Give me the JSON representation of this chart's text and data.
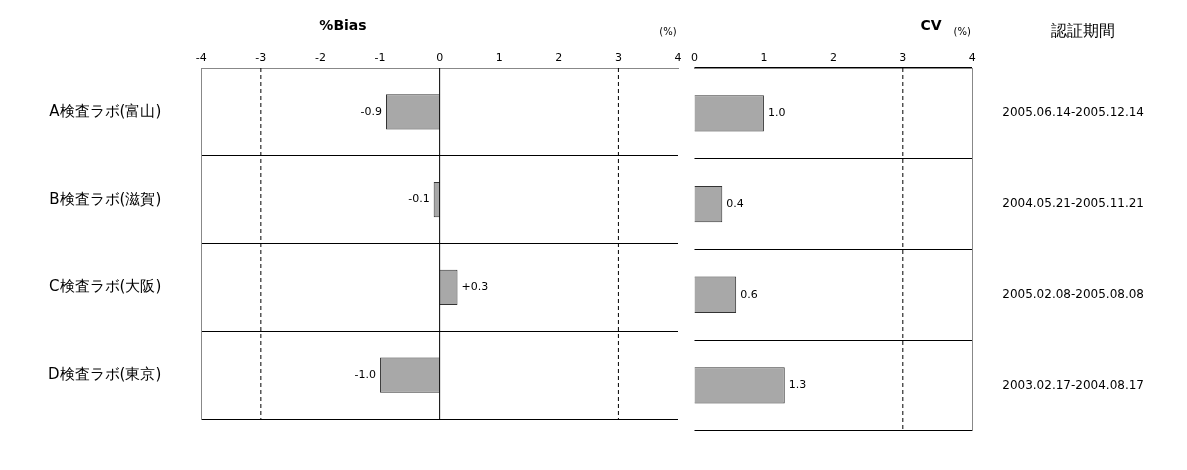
{
  "chart_data": [
    {
      "type": "bar",
      "orientation": "horizontal",
      "title": "%Bias",
      "xlabel": "(%)",
      "categories": [
        "A検査ラボ(富山)",
        "B検査ラボ(滋賀)",
        "C検査ラボ(大阪)",
        "D検査ラボ(東京)"
      ],
      "values": [
        -0.9,
        -0.1,
        0.3,
        -1.0
      ],
      "value_labels": [
        "-0.9",
        "-0.1",
        "+0.3",
        "-1.0"
      ],
      "color": "#a8a8a8",
      "xlim": [
        -4,
        4
      ],
      "xticks": [
        -4,
        -3,
        -2,
        -1,
        0,
        1,
        2,
        3,
        4
      ],
      "grid": "y",
      "ref_lines": [
        {
          "axis": "x",
          "value": -3,
          "line_style": "dashed"
        },
        {
          "axis": "x",
          "value": 0,
          "line_style": "solid"
        },
        {
          "axis": "x",
          "value": 3,
          "line_style": "dashed"
        }
      ]
    },
    {
      "type": "bar",
      "orientation": "horizontal",
      "title": "CV",
      "xlabel": "(%)",
      "y2label": "認証期間",
      "y2_categories": [
        "2005.06.14-2005.12.14",
        "2004.05.21-2005.11.21",
        "2005.02.08-2005.08.08",
        "2003.02.17-2004.08.17"
      ],
      "values": [
        1.0,
        0.4,
        0.6,
        1.3
      ],
      "value_labels": [
        "1.0",
        "0.4",
        "0.6",
        "1.3"
      ],
      "color": "#a8a8a8",
      "xlim": [
        0,
        4
      ],
      "xticks": [
        0,
        1,
        2,
        3,
        4
      ],
      "grid": "y",
      "ref_lines": [
        {
          "axis": "x",
          "value": 3,
          "line_style": "dashed"
        }
      ]
    }
  ]
}
